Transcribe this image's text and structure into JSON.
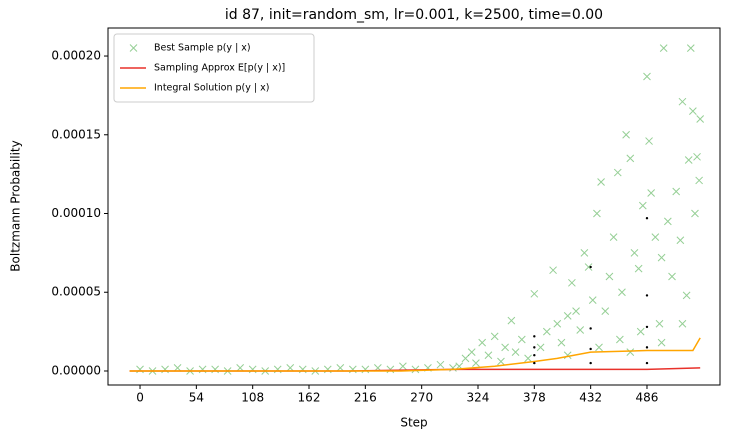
{
  "chart_data": {
    "type": "scatter",
    "title": "id 87, init=random_sm, lr=0.001, k=2500, time=0.00",
    "xlabel": "Step",
    "ylabel": "Boltzmann Probability",
    "xlim": [
      -30.7,
      556
    ],
    "ylim": [
      -8.9e-06,
      0.0002178
    ],
    "xticks": [
      0,
      54,
      108,
      162,
      216,
      270,
      324,
      378,
      432,
      486
    ],
    "yticks": [
      {
        "value": 0,
        "label": "0.00000"
      },
      {
        "value": 5e-05,
        "label": "0.00005"
      },
      {
        "value": 0.0001,
        "label": "0.00010"
      },
      {
        "value": 0.00015,
        "label": "0.00015"
      },
      {
        "value": 0.0002,
        "label": "0.00020"
      }
    ],
    "legend": "upper left",
    "series": [
      {
        "name": "Best Sample p(y | x)",
        "type": "scatter",
        "color": "#2ca02c",
        "x": [
          0,
          12,
          24,
          36,
          48,
          60,
          72,
          84,
          96,
          108,
          120,
          132,
          144,
          156,
          168,
          180,
          192,
          204,
          216,
          228,
          240,
          252,
          264,
          276,
          288,
          300,
          306,
          312,
          318,
          322,
          328,
          334,
          340,
          346,
          350,
          356,
          360,
          366,
          372,
          378,
          384,
          390,
          396,
          400,
          404,
          410,
          414,
          418,
          422,
          426,
          430,
          434,
          438,
          442,
          446,
          450,
          454,
          458,
          462,
          466,
          470,
          474,
          478,
          482,
          486,
          488,
          490,
          494,
          498,
          500,
          502,
          506,
          510,
          514,
          518,
          520,
          524,
          526,
          528,
          530,
          532,
          534,
          536,
          537,
          460,
          470,
          480,
          500,
          520,
          410,
          440
        ],
        "values": [
          1e-06,
          0,
          1e-06,
          2e-06,
          0,
          1e-06,
          1e-06,
          0,
          2e-06,
          1e-06,
          0,
          1e-06,
          2e-06,
          1e-06,
          0,
          1e-06,
          2e-06,
          1e-06,
          1e-06,
          2e-06,
          1e-06,
          3e-06,
          1e-06,
          2e-06,
          4e-06,
          2e-06,
          3e-06,
          8e-06,
          1.2e-05,
          5e-06,
          1.8e-05,
          1e-05,
          2.2e-05,
          6e-06,
          1.5e-05,
          3.2e-05,
          1.2e-05,
          2e-05,
          8e-06,
          4.9e-05,
          1.5e-05,
          2.5e-05,
          6.4e-05,
          3e-05,
          1.8e-05,
          3.5e-05,
          5.6e-05,
          3.8e-05,
          2.6e-05,
          7.5e-05,
          6.6e-05,
          4.5e-05,
          0.0001,
          0.00012,
          3.8e-05,
          6e-05,
          8.5e-05,
          0.000126,
          5e-05,
          0.00015,
          0.000135,
          7.5e-05,
          6.5e-05,
          0.000105,
          0.000187,
          0.000146,
          0.000113,
          8.5e-05,
          3e-05,
          7.2e-05,
          0.000205,
          9.5e-05,
          6e-05,
          0.000114,
          8.3e-05,
          0.000171,
          4.8e-05,
          0.000134,
          0.000205,
          0.000165,
          0.0001,
          0.000136,
          0.000121,
          0.00016,
          2e-05,
          1.2e-05,
          2.5e-05,
          1.8e-05,
          3e-05,
          1e-05,
          1.5e-05
        ]
      },
      {
        "name": "Sampling Approx E[p(y | x)]",
        "type": "line",
        "color": "#e8312a",
        "x": [
          -10,
          100,
          200,
          300,
          378,
          432,
          486,
          537
        ],
        "values": [
          0,
          0,
          0,
          1e-06,
          1e-06,
          1e-06,
          1e-06,
          2e-06
        ]
      },
      {
        "name": "Integral Solution p(y | x)",
        "type": "line",
        "color": "#ffa500",
        "x": [
          -10,
          250,
          300,
          340,
          378,
          400,
          432,
          486,
          530,
          537
        ],
        "values": [
          0,
          0,
          1e-06,
          3e-06,
          6e-06,
          8e-06,
          1.2e-05,
          1.3e-05,
          1.3e-05,
          2.1e-05
        ]
      },
      {
        "type": "dots",
        "color": "#000000",
        "x": [
          378,
          378,
          378,
          378,
          432,
          432,
          432,
          432,
          486,
          486,
          486,
          486,
          486
        ],
        "values": [
          5e-06,
          1e-05,
          1.5e-05,
          2.2e-05,
          5e-06,
          1.4e-05,
          2.7e-05,
          6.6e-05,
          5e-06,
          1.5e-05,
          2.8e-05,
          4.8e-05,
          9.7e-05
        ]
      }
    ]
  }
}
